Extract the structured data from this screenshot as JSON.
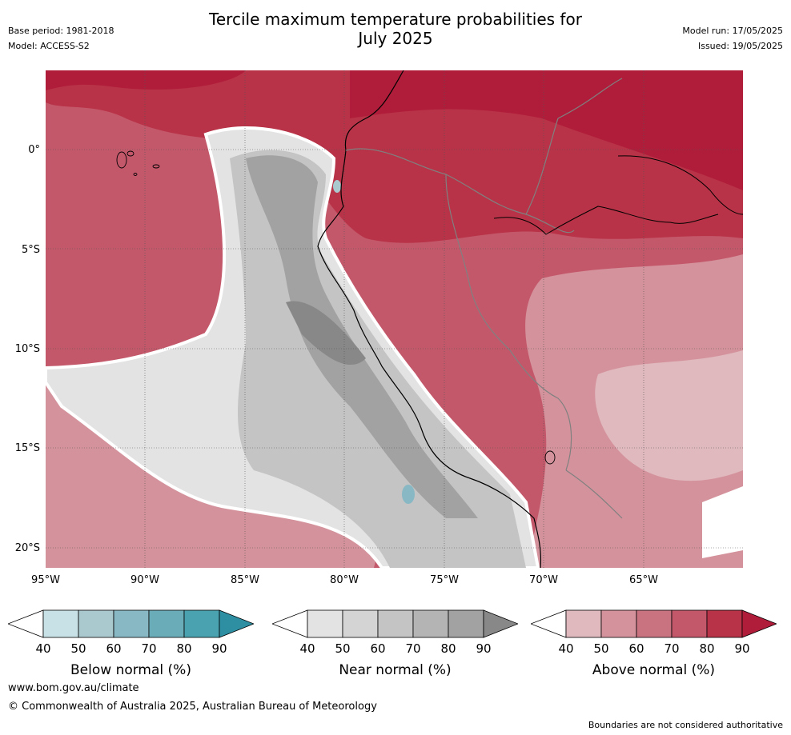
{
  "header": {
    "title_line1": "Tercile maximum temperature probabilities for",
    "title_line2": "July 2025",
    "base_period": "Base period: 1981-2018",
    "model": "Model: ACCESS-S2",
    "model_run": "Model run: 17/05/2025",
    "issued": "Issued: 19/05/2025"
  },
  "map": {
    "lat_labels": [
      "0°",
      "5°S",
      "10°S",
      "15°S",
      "20°S"
    ],
    "lon_labels": [
      "95°W",
      "90°W",
      "85°W",
      "80°W",
      "75°W",
      "70°W",
      "65°W"
    ]
  },
  "colorbars": [
    {
      "label": "Below normal (%)",
      "ticks": [
        "40",
        "50",
        "60",
        "70",
        "80",
        "90"
      ],
      "colors": [
        "#c7e1e6",
        "#a9c9cf",
        "#88b8c3",
        "#6aadb8",
        "#4aa2b1",
        "#2e8fa3"
      ]
    },
    {
      "label": "Near normal (%)",
      "ticks": [
        "40",
        "50",
        "60",
        "70",
        "80",
        "90"
      ],
      "colors": [
        "#e3e3e3",
        "#d4d4d4",
        "#c4c4c4",
        "#b4b4b4",
        "#a2a2a2",
        "#888888"
      ]
    },
    {
      "label": "Above normal (%)",
      "ticks": [
        "40",
        "50",
        "60",
        "70",
        "80",
        "90"
      ],
      "colors": [
        "#e0b9bf",
        "#d4939c",
        "#c97381",
        "#c4586b",
        "#b83347",
        "#b01d3a"
      ]
    }
  ],
  "footer": {
    "website": "www.bom.gov.au/climate",
    "copyright": "© Commonwealth of Australia 2025, Australian Bureau of Meteorology",
    "disclaimer": "Boundaries are not considered authoritative"
  }
}
